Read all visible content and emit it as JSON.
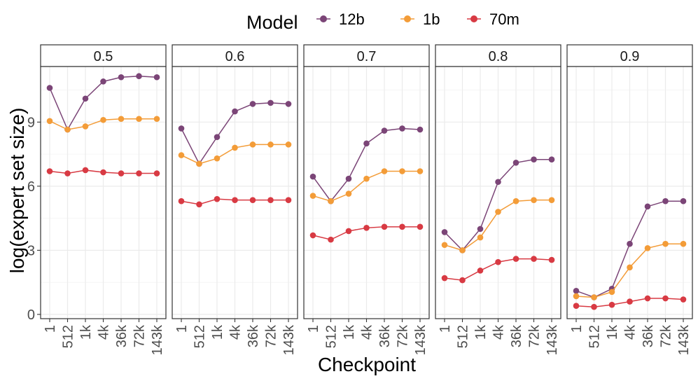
{
  "chart_data": {
    "type": "line",
    "facet_label": "",
    "facets": [
      "0.5",
      "0.6",
      "0.7",
      "0.8",
      "0.9"
    ],
    "categories": [
      "1",
      "512",
      "1k",
      "4k",
      "36k",
      "72k",
      "143k"
    ],
    "xlabel": "Checkpoint",
    "ylabel": "log(expert set size)",
    "ylim": [
      -0.2,
      11.6
    ],
    "yticks": [
      0,
      3,
      6,
      9
    ],
    "ytick_labels": [
      "0",
      "3",
      "6",
      "9"
    ],
    "legend": {
      "title": "Model",
      "position": "top",
      "entries": [
        "12b",
        "1b",
        "70m"
      ]
    },
    "colors": {
      "12b": "#7b4577",
      "1b": "#f39c38",
      "70m": "#d83a43"
    },
    "panels": [
      {
        "facet": "0.5",
        "series": [
          {
            "name": "12b",
            "values": [
              10.6,
              8.65,
              10.1,
              10.9,
              11.1,
              11.15,
              11.1
            ]
          },
          {
            "name": "1b",
            "values": [
              9.05,
              8.65,
              8.8,
              9.1,
              9.15,
              9.15,
              9.15
            ]
          },
          {
            "name": "70m",
            "values": [
              6.7,
              6.6,
              6.75,
              6.65,
              6.6,
              6.6,
              6.6
            ]
          }
        ]
      },
      {
        "facet": "0.6",
        "series": [
          {
            "name": "12b",
            "values": [
              8.7,
              7.05,
              8.3,
              9.5,
              9.85,
              9.9,
              9.85
            ]
          },
          {
            "name": "1b",
            "values": [
              7.45,
              7.05,
              7.3,
              7.8,
              7.95,
              7.95,
              7.95
            ]
          },
          {
            "name": "70m",
            "values": [
              5.3,
              5.15,
              5.4,
              5.35,
              5.35,
              5.35,
              5.35
            ]
          }
        ]
      },
      {
        "facet": "0.7",
        "series": [
          {
            "name": "12b",
            "values": [
              6.45,
              5.3,
              6.35,
              8.0,
              8.6,
              8.7,
              8.65
            ]
          },
          {
            "name": "1b",
            "values": [
              5.55,
              5.3,
              5.65,
              6.35,
              6.7,
              6.7,
              6.7
            ]
          },
          {
            "name": "70m",
            "values": [
              3.7,
              3.5,
              3.9,
              4.05,
              4.1,
              4.1,
              4.1
            ]
          }
        ]
      },
      {
        "facet": "0.8",
        "series": [
          {
            "name": "12b",
            "values": [
              3.85,
              3.0,
              4.0,
              6.2,
              7.1,
              7.25,
              7.25
            ]
          },
          {
            "name": "1b",
            "values": [
              3.25,
              3.0,
              3.6,
              4.8,
              5.3,
              5.35,
              5.35
            ]
          },
          {
            "name": "70m",
            "values": [
              1.7,
              1.6,
              2.05,
              2.45,
              2.6,
              2.6,
              2.55
            ]
          }
        ]
      },
      {
        "facet": "0.9",
        "series": [
          {
            "name": "12b",
            "values": [
              1.1,
              0.8,
              1.2,
              3.3,
              5.05,
              5.3,
              5.3
            ]
          },
          {
            "name": "1b",
            "values": [
              0.85,
              0.8,
              1.05,
              2.2,
              3.1,
              3.3,
              3.3
            ]
          },
          {
            "name": "70m",
            "values": [
              0.4,
              0.35,
              0.45,
              0.6,
              0.75,
              0.75,
              0.7
            ]
          }
        ]
      }
    ]
  }
}
